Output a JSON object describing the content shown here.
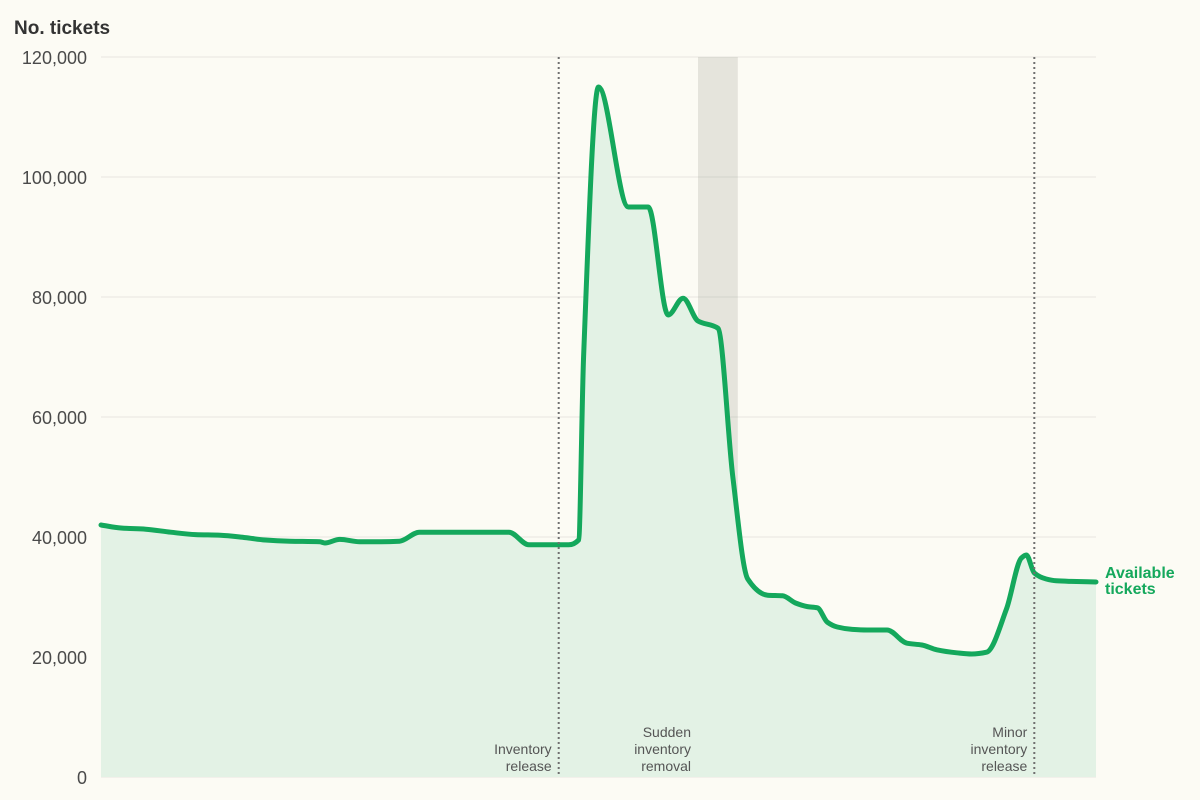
{
  "chart_data": {
    "type": "area",
    "title": "",
    "ylabel": "No. tickets",
    "xlabel": "",
    "ylim": [
      0,
      120000
    ],
    "yticks": [
      0,
      20000,
      40000,
      60000,
      80000,
      100000,
      120000
    ],
    "ytick_labels": [
      "0",
      "20,000",
      "40,000",
      "60,000",
      "80,000",
      "100,000",
      "120,000"
    ],
    "x_index_range": [
      0,
      100
    ],
    "series": [
      {
        "name": "Available tickets",
        "color": "#14a85c",
        "fill_color": "#e3f2e5",
        "x": [
          0,
          2,
          4.5,
          7,
          9.5,
          12,
          14.5,
          16.5,
          19,
          22,
          22.5,
          24,
          26,
          28,
          30,
          32,
          33.5,
          36,
          37.5,
          39,
          41,
          43,
          45,
          46,
          47,
          48,
          48.5,
          50,
          53,
          55,
          57,
          58.5,
          60,
          62,
          63.5,
          65,
          67,
          68.5,
          69.8,
          71,
          72,
          73,
          74,
          75.5,
          77,
          79,
          81,
          82.5,
          84,
          86,
          87.5,
          89,
          91,
          92.5,
          93,
          93.8,
          95,
          96,
          97.5,
          100
        ],
        "y": [
          42000,
          41500,
          41300,
          40800,
          40400,
          40300,
          39900,
          39500,
          39300,
          39200,
          39000,
          39600,
          39200,
          39200,
          39300,
          40800,
          40800,
          40800,
          40800,
          40800,
          40800,
          38700,
          38700,
          38700,
          38700,
          39500,
          70000,
          115000,
          95000,
          95000,
          77000,
          79800,
          76000,
          74800,
          50000,
          33000,
          30300,
          30200,
          29000,
          28400,
          28200,
          25800,
          25000,
          24600,
          24500,
          24500,
          22300,
          22000,
          21200,
          20700,
          20500,
          20800,
          28000,
          36500,
          37000,
          34000,
          33000,
          32700,
          32600,
          32500
        ]
      }
    ],
    "annotations": [
      {
        "type": "line",
        "x": 46,
        "lines": [
          "Inventory",
          "release"
        ]
      },
      {
        "type": "band",
        "x_range": [
          60,
          64
        ],
        "lines": [
          "Sudden",
          "inventory",
          "removal"
        ]
      },
      {
        "type": "line",
        "x": 93.8,
        "lines": [
          "Minor",
          "inventory",
          "release"
        ]
      }
    ],
    "series_label_lines": [
      "Available",
      "tickets"
    ],
    "grid": true
  }
}
